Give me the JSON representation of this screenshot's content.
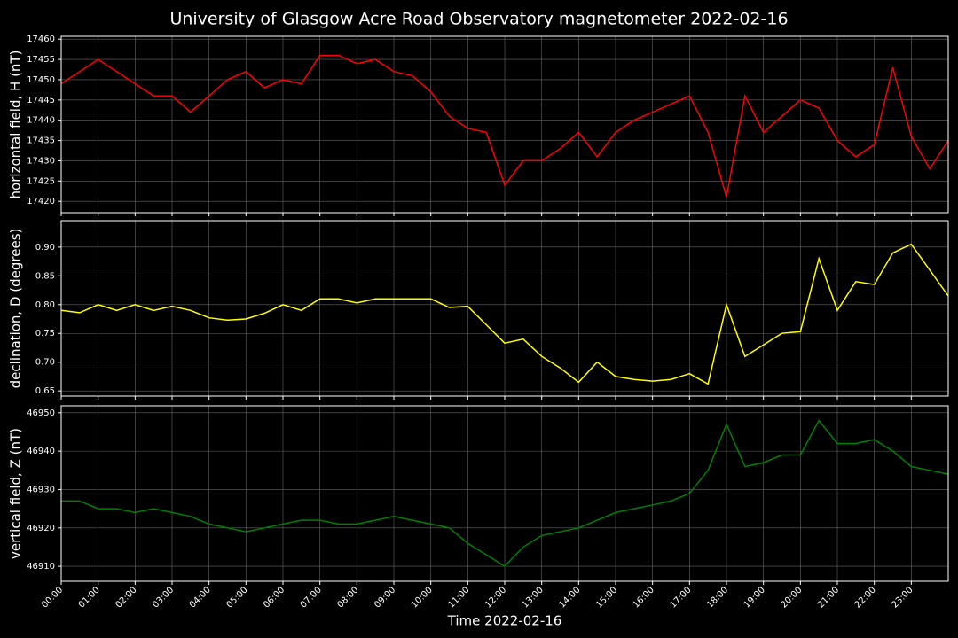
{
  "chart_data": [
    {
      "type": "line",
      "title": "University of Glasgow Acre Road Observatory magnetometer 2022-02-16",
      "ylabel": "horizontal field, H (nT)",
      "color": "#ff0000",
      "grid": true,
      "x": [
        0,
        0.5,
        1,
        1.5,
        2,
        2.5,
        3,
        3.5,
        4,
        4.5,
        5,
        5.5,
        6,
        6.5,
        7,
        7.5,
        8,
        8.5,
        9,
        9.5,
        10,
        10.5,
        11,
        11.5,
        12,
        12.5,
        13,
        13.5,
        14,
        14.5,
        15,
        15.5,
        16,
        16.5,
        17,
        17.5,
        18,
        18.5,
        19,
        19.5,
        20,
        20.5,
        21,
        21.5,
        22,
        22.5,
        23,
        23.5,
        24
      ],
      "values": [
        17449,
        17452,
        17455,
        17452,
        17449,
        17446,
        17446,
        17442,
        17446,
        17450,
        17452,
        17448,
        17450,
        17449,
        17456,
        17456,
        17454,
        17455,
        17452,
        17451,
        17447,
        17441,
        17438,
        17437,
        17424,
        17430,
        17430,
        17433,
        17437,
        17431,
        17437,
        17440,
        17442,
        17444,
        17446,
        17437,
        17421,
        17446,
        17437,
        17441,
        17445,
        17443,
        17435,
        17431,
        17434,
        17453,
        17436,
        17428,
        17435
      ],
      "xlim": [
        0,
        24
      ],
      "xticks": [
        0,
        1,
        2,
        3,
        4,
        5,
        6,
        7,
        8,
        9,
        10,
        11,
        12,
        13,
        14,
        15,
        16,
        17,
        18,
        19,
        20,
        21,
        22,
        23
      ],
      "ylim": [
        17417.2,
        17460.7
      ],
      "yticks": [
        17420,
        17425,
        17430,
        17435,
        17440,
        17445,
        17450,
        17455,
        17460
      ]
    },
    {
      "type": "line",
      "ylabel": "declination, D (degrees)",
      "color": "#ffff00",
      "grid": true,
      "x": [
        0,
        0.5,
        1,
        1.5,
        2,
        2.5,
        3,
        3.5,
        4,
        4.5,
        5,
        5.5,
        6,
        6.5,
        7,
        7.5,
        8,
        8.5,
        9,
        9.5,
        10,
        10.5,
        11,
        11.5,
        12,
        12.5,
        13,
        13.5,
        14,
        14.5,
        15,
        15.5,
        16,
        16.5,
        17,
        17.5,
        18,
        18.5,
        19,
        19.5,
        20,
        20.5,
        21,
        21.5,
        22,
        22.5,
        23,
        23.5,
        24
      ],
      "values": [
        0.79,
        0.786,
        0.8,
        0.79,
        0.8,
        0.79,
        0.797,
        0.79,
        0.777,
        0.773,
        0.775,
        0.785,
        0.8,
        0.79,
        0.81,
        0.81,
        0.803,
        0.81,
        0.81,
        0.81,
        0.81,
        0.795,
        0.797,
        0.765,
        0.733,
        0.74,
        0.71,
        0.69,
        0.665,
        0.7,
        0.675,
        0.67,
        0.667,
        0.67,
        0.68,
        0.662,
        0.8,
        0.71,
        0.73,
        0.75,
        0.753,
        0.88,
        0.79,
        0.84,
        0.835,
        0.89,
        0.905,
        0.86,
        0.815
      ],
      "xlim": [
        0,
        24
      ],
      "xticks": [
        0,
        1,
        2,
        3,
        4,
        5,
        6,
        7,
        8,
        9,
        10,
        11,
        12,
        13,
        14,
        15,
        16,
        17,
        18,
        19,
        20,
        21,
        22,
        23
      ],
      "ylim": [
        0.641,
        0.946
      ],
      "yticks": [
        0.65,
        {
          "value": 0.7,
          "label": "0.70"
        },
        0.75,
        {
          "value": 0.8,
          "label": "0.80"
        },
        0.85,
        {
          "value": 0.9,
          "label": "0.90"
        }
      ]
    },
    {
      "type": "line",
      "ylabel": "vertical field, Z (nT)",
      "xlabel": "Time 2022-02-16",
      "color": "#008000",
      "grid": true,
      "x": [
        0,
        0.5,
        1,
        1.5,
        2,
        2.5,
        3,
        3.5,
        4,
        4.5,
        5,
        5.5,
        6,
        6.5,
        7,
        7.5,
        8,
        8.5,
        9,
        9.5,
        10,
        10.5,
        11,
        11.5,
        12,
        12.5,
        13,
        13.5,
        14,
        14.5,
        15,
        15.5,
        16,
        16.5,
        17,
        17.5,
        18,
        18.5,
        19,
        19.5,
        20,
        20.5,
        21,
        21.5,
        22,
        22.5,
        23,
        23.5,
        24
      ],
      "values": [
        46927,
        46927,
        46925,
        46925,
        46924,
        46925,
        46924,
        46923,
        46921,
        46920,
        46919,
        46920,
        46921,
        46922,
        46922,
        46921,
        46921,
        46922,
        46923,
        46922,
        46921,
        46920,
        46916,
        46913,
        46910,
        46915,
        46918,
        46919,
        46920,
        46922,
        46924,
        46925,
        46926,
        46927,
        46929,
        46935,
        46947,
        46936,
        46937,
        46939,
        46939,
        46948,
        46942,
        46942,
        46943,
        46940,
        46936,
        46935,
        46934
      ],
      "xlim": [
        0,
        24
      ],
      "xticks": [
        {
          "value": 0,
          "label": "00:00"
        },
        {
          "value": 1,
          "label": "01:00"
        },
        {
          "value": 2,
          "label": "02:00"
        },
        {
          "value": 3,
          "label": "03:00"
        },
        {
          "value": 4,
          "label": "04:00"
        },
        {
          "value": 5,
          "label": "05:00"
        },
        {
          "value": 6,
          "label": "06:00"
        },
        {
          "value": 7,
          "label": "07:00"
        },
        {
          "value": 8,
          "label": "08:00"
        },
        {
          "value": 9,
          "label": "09:00"
        },
        {
          "value": 10,
          "label": "10:00"
        },
        {
          "value": 11,
          "label": "11:00"
        },
        {
          "value": 12,
          "label": "12:00"
        },
        {
          "value": 13,
          "label": "13:00"
        },
        {
          "value": 14,
          "label": "14:00"
        },
        {
          "value": 15,
          "label": "15:00"
        },
        {
          "value": 16,
          "label": "16:00"
        },
        {
          "value": 17,
          "label": "17:00"
        },
        {
          "value": 18,
          "label": "18:00"
        },
        {
          "value": 19,
          "label": "19:00"
        },
        {
          "value": 20,
          "label": "20:00"
        },
        {
          "value": 21,
          "label": "21:00"
        },
        {
          "value": 22,
          "label": "22:00"
        },
        {
          "value": 23,
          "label": "23:00"
        }
      ],
      "ylim": [
        46906.1,
        46951.8
      ],
      "yticks": [
        46910,
        46920,
        46930,
        46940,
        46950
      ]
    }
  ]
}
